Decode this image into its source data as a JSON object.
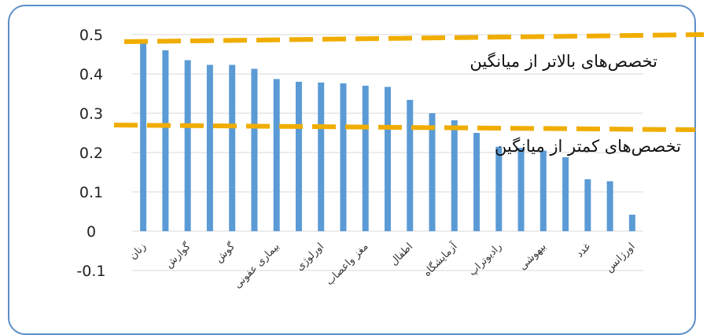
{
  "chart_data": {
    "type": "bar",
    "title": "",
    "xlabel": "",
    "ylabel": "",
    "ylim": [
      -0.1,
      0.5
    ],
    "yticks": [
      0.5,
      0.4,
      0.3,
      0.2,
      0.1,
      0,
      -0.1
    ],
    "grid": true,
    "legend": "none",
    "bar_color": "#5b9bd5",
    "reference_line_color": "#f0ad00",
    "categories": [
      "زنان",
      "",
      "گوارش",
      "",
      "گوش",
      "",
      "بیماری عفونی",
      "",
      "اورلوژی",
      "",
      "مغز واعصاب",
      "",
      "اطفال",
      "",
      "آزمایشگاه",
      "",
      "رادیوتراپ",
      "",
      "بیهوشی",
      "",
      "غدد",
      "",
      "اورژانس"
    ],
    "values": [
      0.48,
      0.46,
      0.435,
      0.423,
      0.423,
      0.413,
      0.387,
      0.38,
      0.378,
      0.376,
      0.37,
      0.367,
      0.334,
      0.3,
      0.282,
      0.25,
      0.215,
      0.212,
      0.205,
      0.188,
      0.132,
      0.127,
      0.042
    ],
    "annotations": [
      {
        "text": "تخصص‌های بالاتر از میانگین"
      },
      {
        "text": "تخصص‌های کمتر از میانگین"
      }
    ]
  }
}
